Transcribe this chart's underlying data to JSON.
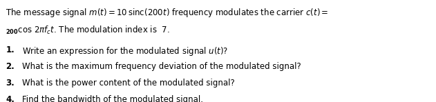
{
  "background_color": "#ffffff",
  "figsize": [
    6.31,
    1.48
  ],
  "dpi": 100,
  "intro_line1": "The message signal $m(t) = 10\\,\\mathrm{sinc}(200t)$ frequency modulates the carrier $c(t) =$",
  "intro_line2_prefix": "$_{200}$cos $2\\pi f_c t$. The modulation index is 7.",
  "questions": [
    "Write an expression for the modulated signal $u(t)$?",
    "What is the maximum frequency deviation of the modulated signal?",
    "What is the power content of the modulated signal?",
    "Find the bandwidth of the modulated signal."
  ],
  "q_numbers": [
    "1.",
    "2.",
    "3.",
    "4."
  ],
  "text_color": "#000000",
  "font_size": 8.5
}
